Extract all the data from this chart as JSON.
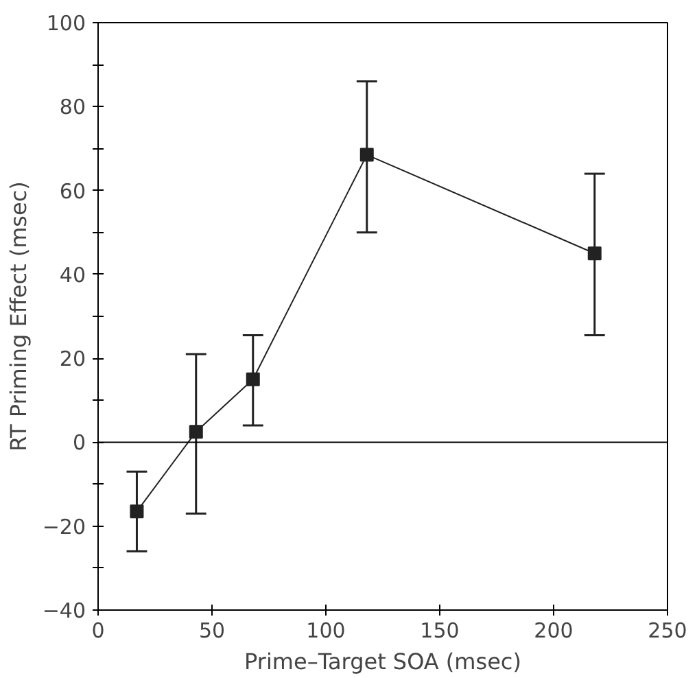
{
  "chart_data": {
    "type": "line",
    "xlabel": "Prime–Target SOA (msec)",
    "ylabel": "RT Priming Effect (msec)",
    "x": [
      17,
      43,
      68,
      118,
      218
    ],
    "series": [
      {
        "color": "#222222",
        "values": [
          -16.5,
          2.5,
          15,
          68.5,
          45
        ],
        "errors": [
          [
            -26,
            -7
          ],
          [
            -17,
            21
          ],
          [
            4,
            25.5
          ],
          [
            50,
            86
          ],
          [
            25.5,
            64
          ]
        ]
      }
    ],
    "xlim": [
      0,
      250
    ],
    "xticks": [
      0,
      50,
      100,
      150,
      200,
      250
    ],
    "ylim": [
      -40,
      100
    ],
    "yticks": [
      -40,
      {
        "value": -30,
        "label": null
      },
      -20,
      {
        "value": -10,
        "label": null
      },
      0,
      {
        "value": 10,
        "label": null
      },
      20,
      {
        "value": 30,
        "label": null
      },
      40,
      {
        "value": 50,
        "label": null
      },
      60,
      {
        "value": 70,
        "label": null
      },
      80,
      {
        "value": 90,
        "label": null
      },
      100
    ],
    "ref_lines": [
      {
        "axis": "y",
        "value": 0
      }
    ],
    "marker": "square",
    "line_style": "solid",
    "grid": false
  }
}
